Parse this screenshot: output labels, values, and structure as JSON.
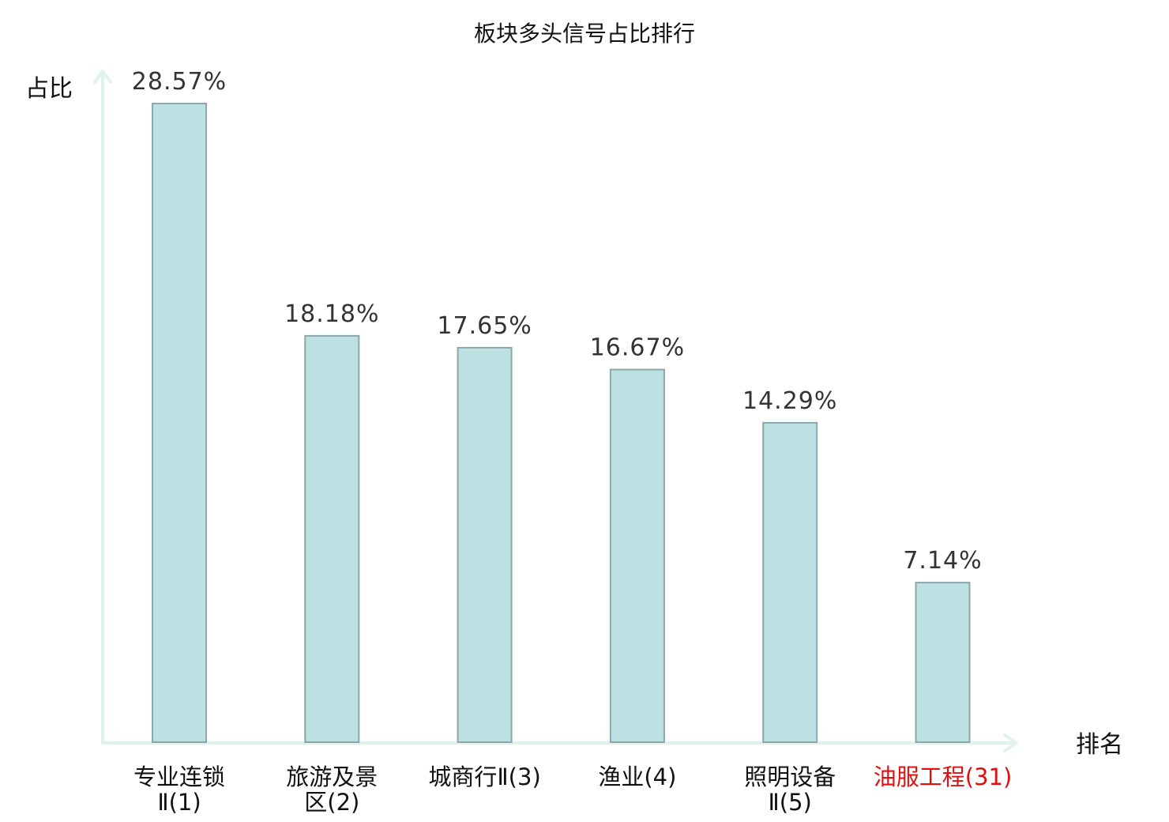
{
  "chart_data": {
    "type": "bar",
    "title": "板块多头信号占比排行",
    "ylabel": "占比",
    "xlabel": "排名",
    "ylim": [
      0,
      30
    ],
    "grid": false,
    "categories": [
      {
        "lines": [
          "专业连锁",
          "Ⅱ(1)"
        ],
        "highlight": false
      },
      {
        "lines": [
          "旅游及景",
          "区(2)"
        ],
        "highlight": false
      },
      {
        "lines": [
          "城商行Ⅱ(3)"
        ],
        "highlight": false
      },
      {
        "lines": [
          "渔业(4)"
        ],
        "highlight": false
      },
      {
        "lines": [
          "照明设备",
          "Ⅱ(5)"
        ],
        "highlight": false
      },
      {
        "lines": [
          "油服工程(31)"
        ],
        "highlight": true
      }
    ],
    "values": [
      28.57,
      18.18,
      17.65,
      16.67,
      14.29,
      7.14
    ],
    "value_labels": [
      "28.57%",
      "18.18%",
      "17.65%",
      "16.67%",
      "14.29%",
      "7.14%"
    ],
    "colors": {
      "bar_fill": "#bde0e3",
      "bar_stroke": "#8aa8aa",
      "axis": "#e0f2ef",
      "highlight": "#e01010"
    }
  }
}
